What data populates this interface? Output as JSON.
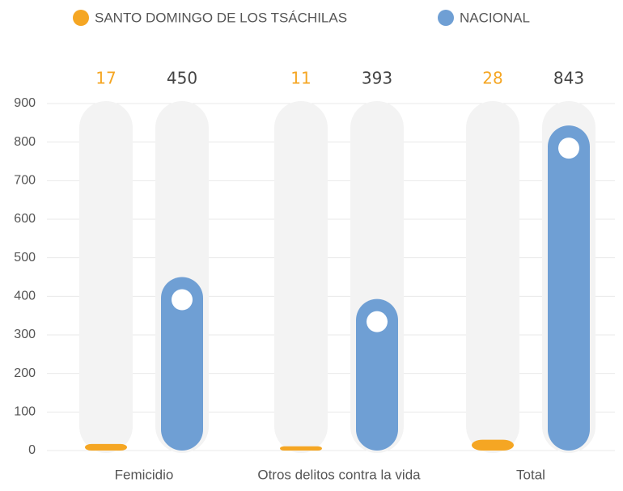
{
  "chart_data": {
    "type": "bar",
    "categories": [
      "Femicidio",
      "Otros delitos contra la vida",
      "Total"
    ],
    "series": [
      {
        "name": "SANTO DOMINGO DE LOS TSÁCHILAS",
        "color": "#f5a623",
        "values": [
          17,
          11,
          28
        ]
      },
      {
        "name": "NACIONAL",
        "color": "#6f9fd4",
        "values": [
          450,
          393,
          843
        ]
      }
    ],
    "ylim": [
      0,
      900
    ],
    "yticks": [
      0,
      100,
      200,
      300,
      400,
      500,
      600,
      700,
      800,
      900
    ],
    "grid": true
  }
}
